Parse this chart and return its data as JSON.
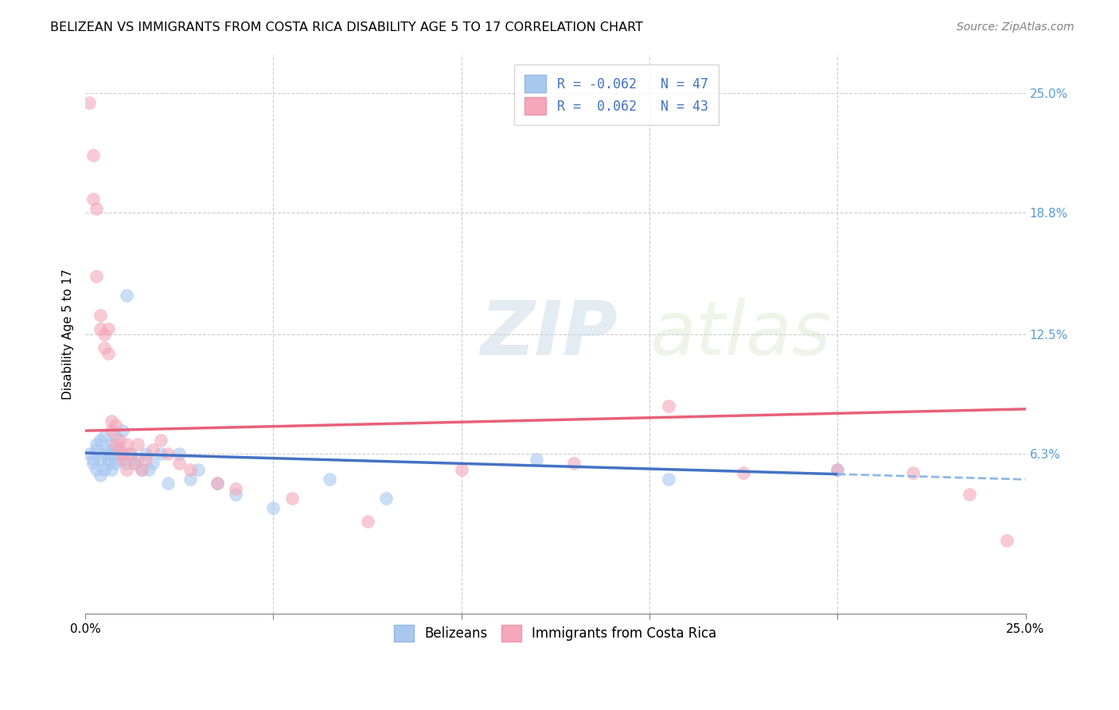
{
  "title": "BELIZEAN VS IMMIGRANTS FROM COSTA RICA DISABILITY AGE 5 TO 17 CORRELATION CHART",
  "source": "Source: ZipAtlas.com",
  "ylabel": "Disability Age 5 to 17",
  "xlim": [
    0,
    0.25
  ],
  "ylim": [
    -0.02,
    0.27
  ],
  "ytick_labels_right": [
    "6.3%",
    "12.5%",
    "18.8%",
    "25.0%"
  ],
  "ytick_vals_right": [
    0.063,
    0.125,
    0.188,
    0.25
  ],
  "legend_r1": "R = -0.062   N = 47",
  "legend_r2": "R =  0.062   N = 43",
  "blue_color": "#A8C8F0",
  "pink_color": "#F4A8BA",
  "blue_line_color": "#4472C4",
  "pink_line_color": "#E8607A",
  "dashed_line_color": "#90B8E8",
  "background_color": "#FFFFFF",
  "grid_color": "#CCCCCC",
  "blue_x": [
    0.001,
    0.002,
    0.002,
    0.003,
    0.003,
    0.003,
    0.004,
    0.004,
    0.004,
    0.005,
    0.005,
    0.005,
    0.006,
    0.006,
    0.006,
    0.007,
    0.007,
    0.007,
    0.008,
    0.008,
    0.008,
    0.009,
    0.009,
    0.01,
    0.01,
    0.011,
    0.011,
    0.012,
    0.013,
    0.014,
    0.015,
    0.016,
    0.017,
    0.018,
    0.02,
    0.022,
    0.025,
    0.028,
    0.03,
    0.035,
    0.04,
    0.05,
    0.065,
    0.08,
    0.12,
    0.155,
    0.2
  ],
  "blue_y": [
    0.063,
    0.058,
    0.06,
    0.055,
    0.065,
    0.068,
    0.052,
    0.06,
    0.07,
    0.055,
    0.063,
    0.072,
    0.06,
    0.065,
    0.058,
    0.063,
    0.055,
    0.068,
    0.058,
    0.063,
    0.072,
    0.06,
    0.065,
    0.075,
    0.063,
    0.058,
    0.145,
    0.063,
    0.058,
    0.06,
    0.055,
    0.063,
    0.055,
    0.058,
    0.063,
    0.048,
    0.063,
    0.05,
    0.055,
    0.048,
    0.042,
    0.035,
    0.05,
    0.04,
    0.06,
    0.05,
    0.055
  ],
  "pink_x": [
    0.001,
    0.002,
    0.002,
    0.003,
    0.003,
    0.004,
    0.004,
    0.005,
    0.005,
    0.006,
    0.006,
    0.007,
    0.007,
    0.008,
    0.008,
    0.009,
    0.009,
    0.01,
    0.01,
    0.011,
    0.011,
    0.012,
    0.013,
    0.014,
    0.015,
    0.016,
    0.018,
    0.02,
    0.022,
    0.025,
    0.028,
    0.035,
    0.04,
    0.055,
    0.075,
    0.1,
    0.13,
    0.155,
    0.175,
    0.2,
    0.22,
    0.235,
    0.245
  ],
  "pink_y": [
    0.245,
    0.218,
    0.195,
    0.19,
    0.155,
    0.135,
    0.128,
    0.125,
    0.118,
    0.128,
    0.115,
    0.08,
    0.075,
    0.078,
    0.068,
    0.065,
    0.07,
    0.063,
    0.06,
    0.055,
    0.068,
    0.063,
    0.058,
    0.068,
    0.055,
    0.06,
    0.065,
    0.07,
    0.063,
    0.058,
    0.055,
    0.048,
    0.045,
    0.04,
    0.028,
    0.055,
    0.058,
    0.088,
    0.053,
    0.055,
    0.053,
    0.042,
    0.018
  ],
  "blue_intercept": 0.0635,
  "blue_slope": -0.055,
  "pink_intercept": 0.075,
  "pink_slope": 0.045
}
